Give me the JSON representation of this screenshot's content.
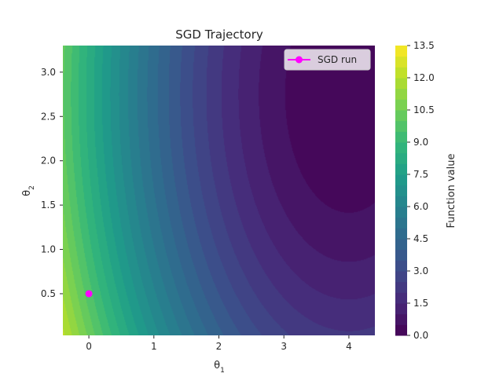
{
  "chart_data": {
    "type": "contour",
    "title": "SGD Trajectory",
    "xlabel": "θ1",
    "ylabel": "θ2",
    "xlim": [
      -0.4,
      4.4
    ],
    "ylim": [
      0.03,
      3.3
    ],
    "x_ticks": [
      {
        "value": 0,
        "label": "0"
      },
      {
        "value": 1,
        "label": "1"
      },
      {
        "value": 2,
        "label": "2"
      },
      {
        "value": 3,
        "label": "3"
      },
      {
        "value": 4,
        "label": "4"
      }
    ],
    "y_ticks": [
      {
        "value": 0.5,
        "label": "0.5"
      },
      {
        "value": 1.0,
        "label": "1.0"
      },
      {
        "value": 1.5,
        "label": "1.5"
      },
      {
        "value": 2.0,
        "label": "2.0"
      },
      {
        "value": 2.5,
        "label": "2.5"
      },
      {
        "value": 3.0,
        "label": "3.0"
      }
    ],
    "function_minimum": {
      "x": 4.0,
      "y": 2.75
    },
    "colorbar": {
      "label": "Function value",
      "vmin": 0.0,
      "vmax": 13.5,
      "levels": 27,
      "ticks": [
        {
          "value": 0.0,
          "label": "0.0"
        },
        {
          "value": 1.5,
          "label": "1.5"
        },
        {
          "value": 3.0,
          "label": "3.0"
        },
        {
          "value": 4.5,
          "label": "4.5"
        },
        {
          "value": 6.0,
          "label": "6.0"
        },
        {
          "value": 7.5,
          "label": "7.5"
        },
        {
          "value": 9.0,
          "label": "9.0"
        },
        {
          "value": 10.5,
          "label": "10.5"
        },
        {
          "value": 12.0,
          "label": "12.0"
        },
        {
          "value": 13.5,
          "label": "13.5"
        }
      ]
    },
    "series": [
      {
        "name": "SGD run",
        "color": "#ff00ff",
        "points": [
          {
            "x": 0.0,
            "y": 0.5
          }
        ]
      }
    ],
    "legend": {
      "position": "top-right"
    },
    "grid": false
  }
}
